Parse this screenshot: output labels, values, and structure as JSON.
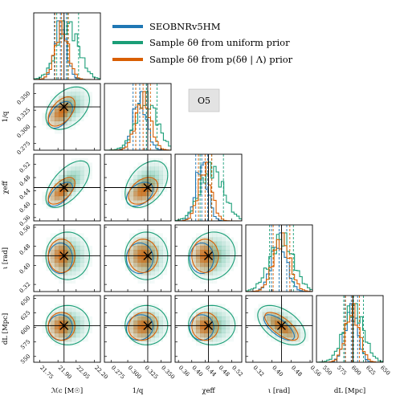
{
  "legend": {
    "items": [
      {
        "label": "SEOBNRv5HM",
        "color": "#1f77b4"
      },
      {
        "label": "Sample δθ from uniform prior",
        "color": "#1a9e77"
      },
      {
        "label": "Sample δθ from p(δθ | Λ) prior",
        "color": "#d95f02"
      }
    ]
  },
  "tag": {
    "label": "O5"
  },
  "chart_data": {
    "type": "corner",
    "parameters": [
      {
        "key": "mc",
        "label": "ℳc [M☉]",
        "range": [
          21.7,
          22.25
        ],
        "ticks": [
          "21.75",
          "21.90",
          "22.05",
          "22.20"
        ],
        "tick_values": [
          21.75,
          21.9,
          22.05,
          22.2
        ],
        "truth": 21.95
      },
      {
        "key": "invq",
        "label": "1/q",
        "range": [
          0.265,
          0.365
        ],
        "ticks": [
          "0.275",
          "0.300",
          "0.325",
          "0.350"
        ],
        "tick_values": [
          0.275,
          0.3,
          0.325,
          0.35
        ],
        "truth": 0.33
      },
      {
        "key": "chi",
        "label": "χeff",
        "range": [
          0.35,
          0.55
        ],
        "ticks": [
          "0.36",
          "0.40",
          "0.44",
          "0.48",
          "0.52"
        ],
        "tick_values": [
          0.36,
          0.4,
          0.44,
          0.48,
          0.52
        ],
        "truth": 0.45
      },
      {
        "key": "iota",
        "label": "ι [rad]",
        "range": [
          0.29,
          0.57
        ],
        "ticks": [
          "0.32",
          "0.40",
          "0.48",
          "0.56"
        ],
        "tick_values": [
          0.32,
          0.4,
          0.48,
          0.56
        ],
        "truth": 0.44
      },
      {
        "key": "dl",
        "label": "dL [Mpc]",
        "range": [
          540,
          655
        ],
        "ticks": [
          "550",
          "575",
          "600",
          "625",
          "650"
        ],
        "tick_values": [
          550,
          575,
          600,
          625,
          650
        ],
        "truth": 603
      }
    ],
    "series": [
      {
        "name": "SEOBNRv5HM",
        "color": "#1f77b4",
        "mean": [
          21.92,
          0.318,
          0.43,
          0.43,
          600
        ],
        "std": [
          0.05,
          0.01,
          0.018,
          0.032,
          11
        ],
        "correlations": {
          "0-1": 0.5,
          "0-2": 0.6,
          "1-2": 0.4,
          "0-3": 0.0,
          "1-3": 0.0,
          "2-3": 0.0,
          "0-4": 0.0,
          "1-4": 0.1,
          "2-4": 0.0,
          "3-4": -0.7
        }
      },
      {
        "name": "Sample δθ from uniform prior",
        "color": "#1a9e77",
        "mean": [
          21.98,
          0.328,
          0.46,
          0.44,
          604
        ],
        "std": [
          0.09,
          0.016,
          0.035,
          0.05,
          17
        ],
        "correlations": {
          "0-1": 0.4,
          "0-2": 0.6,
          "1-2": 0.4,
          "0-3": 0.0,
          "1-3": 0.0,
          "2-3": 0.1,
          "0-4": 0.0,
          "1-4": 0.0,
          "2-4": 0.0,
          "3-4": -0.5
        }
      },
      {
        "name": "Sample δθ from p(δθ | Λ) prior",
        "color": "#d95f02",
        "mean": [
          21.93,
          0.323,
          0.44,
          0.44,
          602
        ],
        "std": [
          0.055,
          0.011,
          0.02,
          0.035,
          12
        ],
        "correlations": {
          "0-1": 0.5,
          "0-2": 0.6,
          "1-2": 0.4,
          "0-3": 0.0,
          "1-3": 0.0,
          "2-3": 0.0,
          "0-4": 0.0,
          "1-4": 0.1,
          "2-4": 0.0,
          "3-4": -0.7
        }
      }
    ]
  }
}
